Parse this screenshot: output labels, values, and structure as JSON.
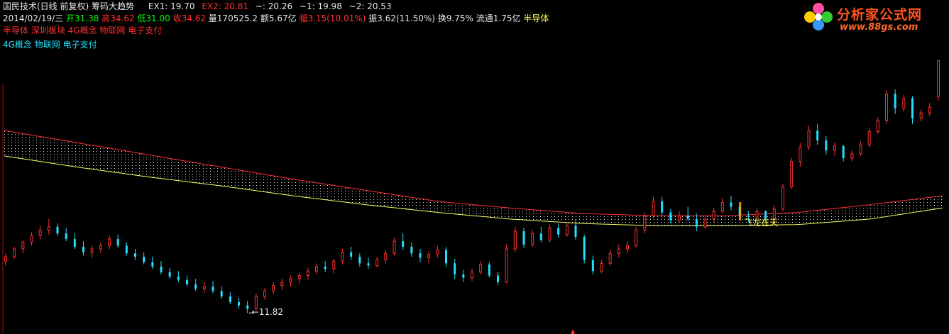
{
  "header": {
    "stock": "国民技术(日线 前复权)",
    "indicator": "筹码大趋势",
    "ex1_label": "EX1: 19.70",
    "ex2_label": "EX2: 20.81",
    "tilde_label": "~: 20.26",
    "t1_label": "~1: 19.98",
    "t2_label": "~2: 20.53"
  },
  "quote": {
    "date": "2014/02/19/三",
    "open": "开31.38",
    "high": "高34.62",
    "low": "低31.00",
    "close": "收34.62",
    "volume": "量170525.2",
    "amount": "额5.67亿",
    "change": "幅3.15(10.01%)",
    "amplitude": "振3.62(11.50%)",
    "turnover": "换9.75%",
    "float_cap": "流通1.75亿",
    "sector": "半导体"
  },
  "concepts_line1": "半导体 深圳板块 4G概念 物联网 电子支付",
  "concepts_line2": "4G概念 物联网 电子支付",
  "logo": {
    "title": "分析家公式网",
    "url": "www.88gs.com"
  },
  "annotations": {
    "low_label": "←11.82",
    "signal_label": "飞龙在天"
  },
  "colors": {
    "up": "#ff3030",
    "down": "#22e0ff",
    "ma_red": "#ff3030",
    "ma_yellow": "#ffff66",
    "bg": "#000000"
  },
  "chart_data": {
    "type": "candlestick",
    "title": "筹码大趋势",
    "ylim": [
      10.3,
      35.6
    ],
    "series": [
      {
        "name": "EX2",
        "values": [
          28.3,
          27.2,
          26.1,
          25.0,
          23.9,
          22.9,
          21.9,
          21.3,
          20.8,
          20.6,
          20.6,
          20.9,
          21.6,
          22.4
        ]
      },
      {
        "name": "EX1",
        "values": [
          26.0,
          25.0,
          24.1,
          23.3,
          22.4,
          21.6,
          20.9,
          20.3,
          19.9,
          19.7,
          19.7,
          19.8,
          20.3,
          21.3
        ]
      }
    ],
    "candles": [
      [
        16.5,
        17.2,
        16.1,
        16.9
      ],
      [
        16.9,
        17.8,
        16.7,
        17.6
      ],
      [
        17.6,
        18.4,
        17.2,
        18.2
      ],
      [
        18.2,
        19.1,
        17.9,
        18.8
      ],
      [
        18.8,
        19.7,
        18.5,
        19.3
      ],
      [
        19.3,
        20.3,
        18.9,
        19.6
      ],
      [
        19.6,
        19.9,
        18.8,
        19.0
      ],
      [
        19.0,
        19.5,
        18.3,
        18.5
      ],
      [
        18.5,
        19.0,
        17.6,
        17.8
      ],
      [
        17.8,
        18.3,
        17.0,
        17.3
      ],
      [
        17.3,
        17.9,
        16.8,
        17.6
      ],
      [
        17.6,
        18.2,
        17.2,
        17.9
      ],
      [
        17.9,
        18.8,
        17.6,
        18.5
      ],
      [
        18.5,
        18.9,
        17.7,
        17.9
      ],
      [
        17.9,
        18.2,
        17.0,
        17.2
      ],
      [
        17.2,
        17.6,
        16.6,
        16.9
      ],
      [
        16.9,
        17.3,
        16.2,
        16.4
      ],
      [
        16.4,
        16.9,
        15.8,
        16.0
      ],
      [
        16.0,
        16.5,
        15.3,
        15.5
      ],
      [
        15.5,
        15.9,
        14.9,
        15.1
      ],
      [
        15.1,
        15.6,
        14.6,
        14.8
      ],
      [
        14.8,
        15.2,
        14.2,
        14.4
      ],
      [
        14.4,
        14.9,
        13.8,
        14.0
      ],
      [
        14.0,
        14.6,
        13.6,
        14.2
      ],
      [
        14.2,
        14.7,
        13.6,
        13.8
      ],
      [
        13.8,
        14.2,
        13.1,
        13.3
      ],
      [
        13.3,
        13.7,
        12.6,
        12.8
      ],
      [
        12.8,
        13.2,
        12.2,
        12.5
      ],
      [
        12.5,
        12.9,
        11.82,
        12.2
      ],
      [
        12.2,
        13.6,
        12.0,
        13.3
      ],
      [
        13.3,
        14.1,
        13.0,
        13.8
      ],
      [
        13.8,
        14.6,
        13.5,
        14.3
      ],
      [
        14.3,
        14.9,
        13.9,
        14.6
      ],
      [
        14.6,
        15.2,
        14.2,
        14.9
      ],
      [
        14.9,
        15.5,
        14.5,
        15.2
      ],
      [
        15.2,
        15.9,
        14.8,
        15.6
      ],
      [
        15.6,
        16.3,
        15.3,
        16.0
      ],
      [
        16.0,
        16.5,
        15.5,
        15.8
      ],
      [
        15.8,
        16.7,
        15.4,
        16.5
      ],
      [
        16.5,
        17.6,
        16.2,
        17.3
      ],
      [
        17.3,
        17.8,
        16.6,
        16.9
      ],
      [
        16.9,
        17.2,
        16.0,
        16.3
      ],
      [
        16.3,
        16.8,
        15.8,
        16.1
      ],
      [
        16.1,
        16.9,
        15.9,
        16.6
      ],
      [
        16.6,
        17.5,
        16.3,
        17.2
      ],
      [
        17.2,
        18.6,
        17.0,
        18.3
      ],
      [
        18.3,
        19.0,
        17.5,
        17.8
      ],
      [
        17.8,
        18.2,
        16.9,
        17.2
      ],
      [
        17.2,
        17.6,
        16.4,
        16.8
      ],
      [
        16.8,
        17.4,
        16.3,
        17.1
      ],
      [
        17.1,
        17.9,
        16.8,
        17.5
      ],
      [
        17.5,
        17.8,
        16.0,
        16.3
      ],
      [
        16.3,
        16.7,
        14.9,
        15.3
      ],
      [
        15.3,
        15.7,
        14.6,
        15.0
      ],
      [
        15.0,
        15.8,
        14.7,
        15.5
      ],
      [
        15.5,
        16.5,
        15.3,
        16.2
      ],
      [
        16.2,
        16.4,
        15.0,
        15.2
      ],
      [
        15.2,
        15.5,
        14.3,
        14.6
      ],
      [
        14.6,
        18.0,
        14.5,
        17.6
      ],
      [
        17.6,
        19.6,
        17.3,
        19.2
      ],
      [
        19.2,
        19.5,
        17.7,
        18.0
      ],
      [
        18.0,
        19.3,
        17.8,
        19.0
      ],
      [
        19.0,
        19.6,
        18.2,
        18.4
      ],
      [
        18.4,
        19.8,
        18.2,
        19.5
      ],
      [
        19.5,
        19.9,
        18.6,
        18.9
      ],
      [
        18.9,
        20.0,
        18.7,
        19.7
      ],
      [
        19.7,
        20.3,
        18.4,
        18.7
      ],
      [
        18.7,
        18.9,
        16.3,
        16.6
      ],
      [
        16.6,
        17.0,
        15.3,
        15.6
      ],
      [
        15.6,
        16.6,
        15.4,
        16.3
      ],
      [
        16.3,
        17.5,
        16.1,
        17.2
      ],
      [
        17.2,
        18.0,
        16.8,
        17.6
      ],
      [
        17.6,
        18.3,
        17.2,
        17.9
      ],
      [
        17.9,
        19.6,
        17.7,
        19.3
      ],
      [
        19.3,
        20.9,
        19.0,
        20.6
      ],
      [
        20.6,
        22.3,
        20.4,
        21.9
      ],
      [
        21.9,
        22.3,
        20.6,
        20.9
      ],
      [
        20.9,
        21.2,
        19.9,
        20.2
      ],
      [
        20.2,
        21.0,
        19.9,
        20.6
      ],
      [
        20.6,
        21.4,
        20.1,
        20.3
      ],
      [
        20.3,
        20.8,
        19.2,
        19.6
      ],
      [
        19.6,
        20.6,
        19.4,
        20.3
      ],
      [
        20.3,
        21.3,
        20.0,
        21.0
      ],
      [
        21.0,
        22.2,
        20.8,
        21.8
      ],
      [
        21.8,
        22.4,
        21.1,
        21.4
      ],
      [
        21.4,
        21.7,
        20.3,
        20.6
      ],
      [
        20.6,
        21.0,
        20.0,
        20.5
      ],
      [
        20.5,
        21.3,
        20.3,
        21.0
      ],
      [
        21.0,
        21.1,
        20.0,
        20.3
      ],
      [
        20.3,
        21.5,
        20.1,
        21.2
      ],
      [
        21.2,
        23.5,
        21.0,
        23.2
      ],
      [
        23.2,
        25.8,
        23.0,
        25.5
      ],
      [
        25.5,
        27.2,
        25.0,
        26.8
      ],
      [
        26.8,
        28.7,
        26.5,
        28.3
      ],
      [
        28.3,
        28.9,
        27.0,
        27.4
      ],
      [
        27.4,
        27.8,
        26.1,
        26.5
      ],
      [
        26.5,
        27.2,
        26.0,
        26.9
      ],
      [
        26.9,
        27.0,
        25.5,
        25.8
      ],
      [
        25.8,
        26.5,
        25.5,
        26.2
      ],
      [
        26.2,
        27.3,
        26.0,
        27.0
      ],
      [
        27.0,
        28.5,
        26.8,
        28.2
      ],
      [
        28.2,
        29.5,
        28.0,
        29.2
      ],
      [
        29.2,
        31.9,
        28.9,
        31.6
      ],
      [
        31.6,
        32.0,
        29.8,
        30.3
      ],
      [
        30.3,
        31.5,
        30.0,
        31.2
      ],
      [
        31.2,
        31.4,
        28.9,
        29.4
      ],
      [
        29.4,
        30.2,
        29.1,
        29.9
      ],
      [
        29.9,
        30.8,
        29.6,
        30.4
      ],
      [
        31.38,
        34.62,
        31.0,
        34.62
      ]
    ]
  }
}
